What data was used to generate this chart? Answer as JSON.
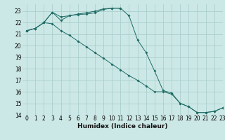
{
  "line1_x": [
    0,
    1,
    2,
    3,
    4,
    5,
    6,
    7,
    8,
    9,
    10,
    11
  ],
  "line1_y": [
    21.3,
    21.5,
    22.0,
    22.9,
    22.5,
    22.6,
    22.7,
    22.75,
    22.85,
    23.15,
    23.25,
    23.25
  ],
  "line2_x": [
    0,
    1,
    2,
    3,
    4,
    5,
    6,
    7,
    8,
    9,
    10,
    11,
    12,
    13,
    14,
    15,
    16,
    17,
    18,
    19,
    20,
    21,
    22,
    23
  ],
  "line2_y": [
    21.3,
    21.5,
    22.0,
    22.9,
    22.2,
    22.6,
    22.75,
    22.85,
    23.0,
    23.2,
    23.25,
    23.25,
    22.6,
    20.5,
    19.4,
    17.8,
    16.1,
    15.9,
    15.0,
    14.7,
    14.2,
    14.2,
    14.3,
    14.6
  ],
  "line3_x": [
    0,
    1,
    2,
    3,
    4,
    5,
    6,
    7,
    8,
    9,
    10,
    11,
    12,
    13,
    14,
    15,
    16,
    17,
    18,
    19,
    20,
    21,
    22,
    23
  ],
  "line3_y": [
    21.3,
    21.5,
    22.0,
    21.9,
    21.3,
    20.9,
    20.4,
    19.9,
    19.4,
    18.9,
    18.4,
    17.9,
    17.4,
    17.0,
    16.5,
    16.0,
    16.0,
    15.8,
    15.0,
    14.7,
    14.2,
    14.2,
    14.3,
    14.6
  ],
  "bg_color": "#cce8e6",
  "grid_color": "#aacfcd",
  "line_color": "#1f6b65",
  "xlim": [
    -0.5,
    23
  ],
  "ylim": [
    14,
    23.6
  ],
  "yticks": [
    14,
    15,
    16,
    17,
    18,
    19,
    20,
    21,
    22,
    23
  ],
  "xticks": [
    0,
    1,
    2,
    3,
    4,
    5,
    6,
    7,
    8,
    9,
    10,
    11,
    12,
    13,
    14,
    15,
    16,
    17,
    18,
    19,
    20,
    21,
    22,
    23
  ],
  "xlabel": "Humidex (Indice chaleur)",
  "xlabel_fontsize": 6.5,
  "tick_fontsize": 5.5,
  "marker": "D",
  "marker_size": 2.0,
  "linewidth": 0.7
}
